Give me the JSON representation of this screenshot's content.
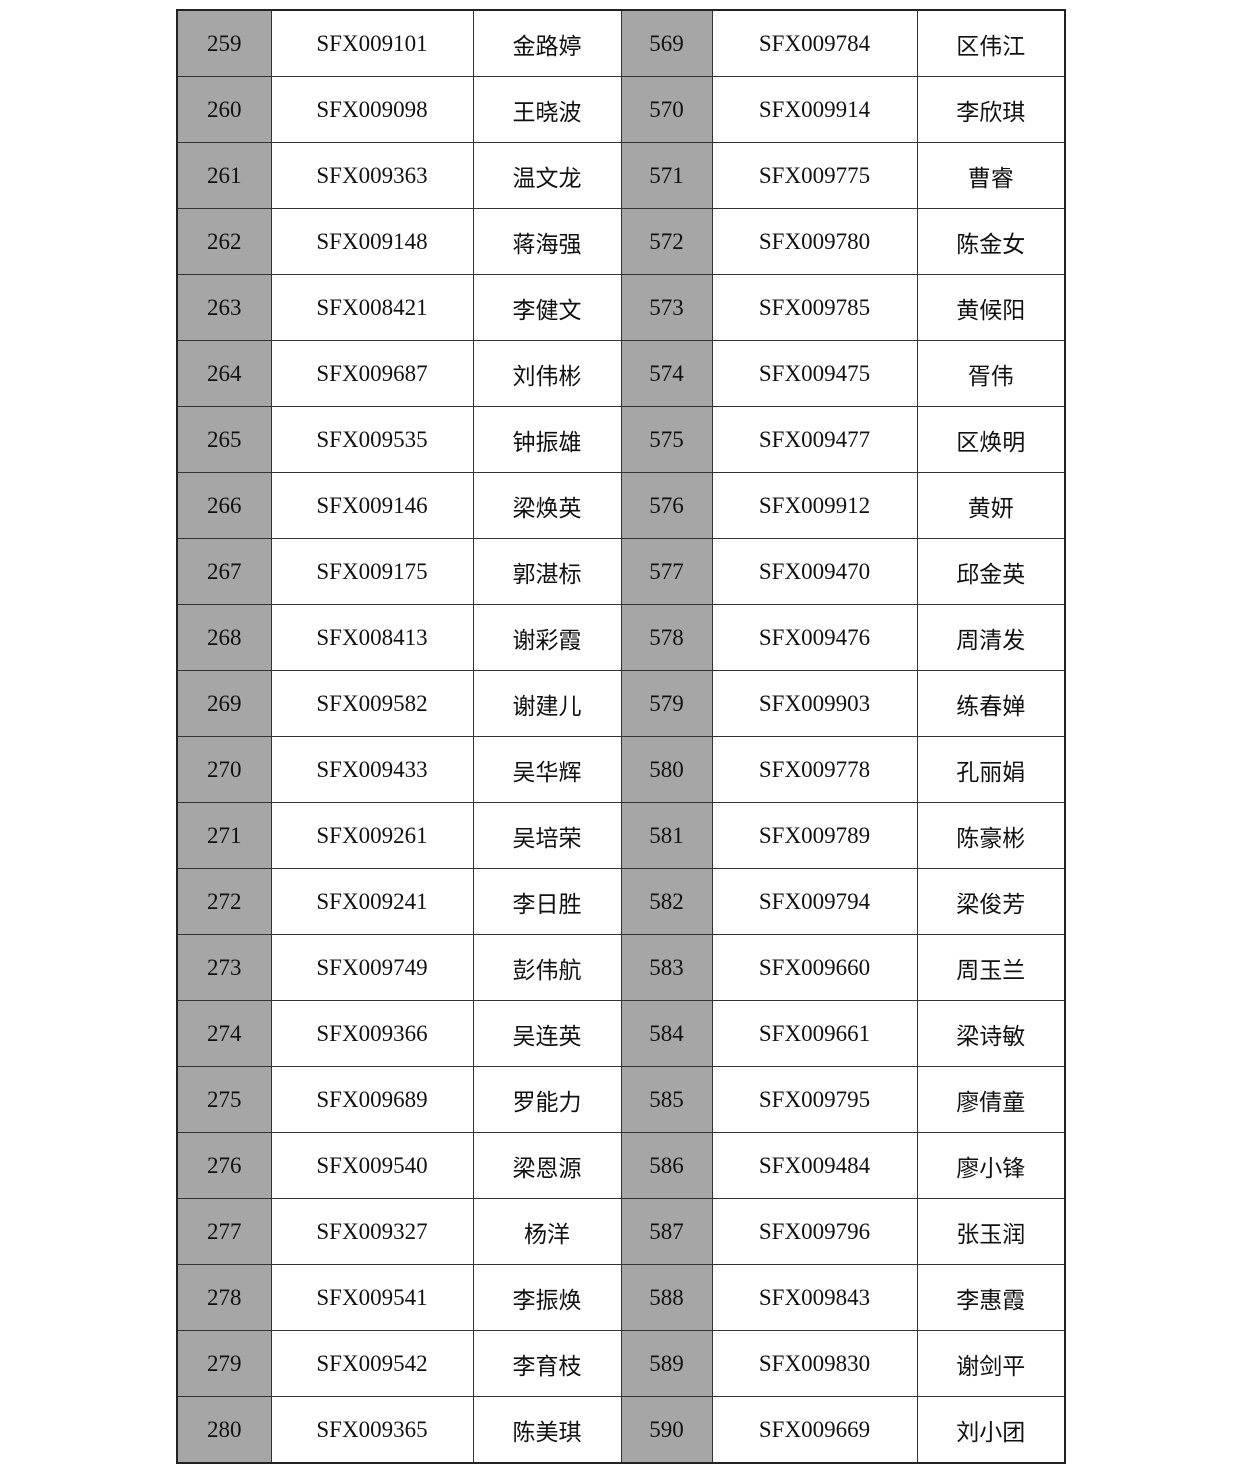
{
  "table": {
    "rows": [
      [
        "259",
        "SFX009101",
        "金路婷",
        "569",
        "SFX009784",
        "区伟江"
      ],
      [
        "260",
        "SFX009098",
        "王晓波",
        "570",
        "SFX009914",
        "李欣琪"
      ],
      [
        "261",
        "SFX009363",
        "温文龙",
        "571",
        "SFX009775",
        "曹睿"
      ],
      [
        "262",
        "SFX009148",
        "蒋海强",
        "572",
        "SFX009780",
        "陈金女"
      ],
      [
        "263",
        "SFX008421",
        "李健文",
        "573",
        "SFX009785",
        "黄候阳"
      ],
      [
        "264",
        "SFX009687",
        "刘伟彬",
        "574",
        "SFX009475",
        "胥伟"
      ],
      [
        "265",
        "SFX009535",
        "钟振雄",
        "575",
        "SFX009477",
        "区焕明"
      ],
      [
        "266",
        "SFX009146",
        "梁焕英",
        "576",
        "SFX009912",
        "黄妍"
      ],
      [
        "267",
        "SFX009175",
        "郭湛标",
        "577",
        "SFX009470",
        "邱金英"
      ],
      [
        "268",
        "SFX008413",
        "谢彩霞",
        "578",
        "SFX009476",
        "周清发"
      ],
      [
        "269",
        "SFX009582",
        "谢建儿",
        "579",
        "SFX009903",
        "练春婵"
      ],
      [
        "270",
        "SFX009433",
        "吴华辉",
        "580",
        "SFX009778",
        "孔丽娟"
      ],
      [
        "271",
        "SFX009261",
        "吴培荣",
        "581",
        "SFX009789",
        "陈豪彬"
      ],
      [
        "272",
        "SFX009241",
        "李日胜",
        "582",
        "SFX009794",
        "梁俊芳"
      ],
      [
        "273",
        "SFX009749",
        "彭伟航",
        "583",
        "SFX009660",
        "周玉兰"
      ],
      [
        "274",
        "SFX009366",
        "吴连英",
        "584",
        "SFX009661",
        "梁诗敏"
      ],
      [
        "275",
        "SFX009689",
        "罗能力",
        "585",
        "SFX009795",
        "廖倩童"
      ],
      [
        "276",
        "SFX009540",
        "梁恩源",
        "586",
        "SFX009484",
        "廖小锋"
      ],
      [
        "277",
        "SFX009327",
        "杨洋",
        "587",
        "SFX009796",
        "张玉润"
      ],
      [
        "278",
        "SFX009541",
        "李振焕",
        "588",
        "SFX009843",
        "李惠霞"
      ],
      [
        "279",
        "SFX009542",
        "李育枝",
        "589",
        "SFX009830",
        "谢剑平"
      ],
      [
        "280",
        "SFX009365",
        "陈美琪",
        "590",
        "SFX009669",
        "刘小团"
      ]
    ]
  },
  "colors": {
    "index_cell_bg": "#a6a6a6"
  }
}
